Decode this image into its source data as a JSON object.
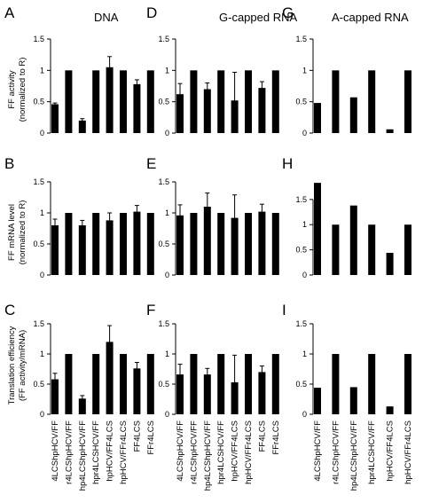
{
  "columns": [
    {
      "title": "DNA",
      "key": "dna"
    },
    {
      "title": "G-capped RNA",
      "key": "g"
    },
    {
      "title": "A-capped RNA",
      "key": "a"
    }
  ],
  "row_ylabels": [
    [
      "FF activity",
      "(normalized to R)"
    ],
    [
      "FF mRNA level",
      "(normalized to R)"
    ],
    [
      "Translation efficiency",
      "(FF activity/mRNA)"
    ]
  ],
  "categories": [
    "4LCShpHCV/FF",
    "r4LCShpHCV/FF",
    "hp4LCShpHCV/FF",
    "hpr4LCSHCV/FF",
    "hpHCV/FF4LCS",
    "hpHCV/FFr4LCS",
    "FF4LCS",
    "FFr4LCS"
  ],
  "chart_data": [
    {
      "type": "bar",
      "panel": "A",
      "column": "DNA",
      "ylabel": "FF activity (normalized to R)",
      "ylim": [
        0,
        1.5
      ],
      "yticks": [
        0,
        0.5,
        1,
        1.5
      ],
      "values": [
        0.46,
        1.0,
        0.2,
        1.0,
        1.05,
        1.0,
        0.78,
        1.0
      ],
      "errors": [
        0.02,
        0,
        0.03,
        0,
        0.17,
        0,
        0.07,
        0
      ]
    },
    {
      "type": "bar",
      "panel": "B",
      "column": "DNA",
      "ylabel": "FF mRNA level (normalized to R)",
      "ylim": [
        0,
        1.5
      ],
      "yticks": [
        0,
        0.5,
        1,
        1.5
      ],
      "values": [
        0.8,
        1.0,
        0.8,
        1.0,
        0.88,
        1.0,
        1.02,
        1.0
      ],
      "errors": [
        0.1,
        0,
        0.08,
        0,
        0.12,
        0,
        0.1,
        0
      ]
    },
    {
      "type": "bar",
      "panel": "C",
      "column": "DNA",
      "ylabel": "Translation efficiency (FF activity/mRNA)",
      "ylim": [
        0,
        1.5
      ],
      "yticks": [
        0,
        0.5,
        1,
        1.5
      ],
      "values": [
        0.58,
        1.0,
        0.26,
        1.0,
        1.2,
        1.0,
        0.76,
        1.0
      ],
      "errors": [
        0.1,
        0,
        0.05,
        0,
        0.27,
        0,
        0.1,
        0
      ]
    },
    {
      "type": "bar",
      "panel": "D",
      "column": "G-capped RNA",
      "ylim": [
        0,
        1.5
      ],
      "yticks": [
        0,
        0.5,
        1,
        1.5
      ],
      "values": [
        0.62,
        1.0,
        0.7,
        1.0,
        0.52,
        1.0,
        0.72,
        1.0
      ],
      "errors": [
        0.17,
        0,
        0.1,
        0,
        0.45,
        0,
        0.1,
        0
      ]
    },
    {
      "type": "bar",
      "panel": "E",
      "column": "G-capped RNA",
      "ylim": [
        0,
        1.5
      ],
      "yticks": [
        0,
        0.5,
        1,
        1.5
      ],
      "values": [
        0.96,
        1.0,
        1.1,
        1.0,
        0.92,
        1.0,
        1.02,
        1.0
      ],
      "errors": [
        0.17,
        0,
        0.22,
        0,
        0.37,
        0,
        0.12,
        0
      ]
    },
    {
      "type": "bar",
      "panel": "F",
      "column": "G-capped RNA",
      "ylim": [
        0,
        1.5
      ],
      "yticks": [
        0,
        0.5,
        1,
        1.5
      ],
      "values": [
        0.66,
        1.0,
        0.66,
        1.0,
        0.53,
        1.0,
        0.7,
        1.0
      ],
      "errors": [
        0.17,
        0,
        0.1,
        0,
        0.45,
        0,
        0.1,
        0
      ]
    },
    {
      "type": "bar",
      "panel": "G",
      "column": "A-capped RNA",
      "ylim": [
        0,
        1.5
      ],
      "yticks": [
        0,
        0.5,
        1,
        1.5
      ],
      "values": [
        0.48,
        1.0,
        0.57,
        1.0,
        0.06,
        1.0
      ],
      "errors": [
        0,
        0,
        0,
        0,
        0,
        0
      ]
    },
    {
      "type": "bar",
      "panel": "H",
      "column": "A-capped RNA",
      "ylim": [
        0,
        1.85
      ],
      "yticks": [
        0,
        0.5,
        1,
        1.5
      ],
      "values": [
        1.83,
        1.0,
        1.38,
        1.0,
        0.44,
        1.0
      ],
      "errors": [
        0,
        0,
        0,
        0,
        0,
        0
      ]
    },
    {
      "type": "bar",
      "panel": "I",
      "column": "A-capped RNA",
      "ylim": [
        0,
        1.5
      ],
      "yticks": [
        0,
        0.5,
        1,
        1.5
      ],
      "values": [
        0.44,
        1.0,
        0.45,
        1.0,
        0.13,
        1.0
      ],
      "errors": [
        0,
        0,
        0,
        0,
        0,
        0
      ]
    }
  ]
}
